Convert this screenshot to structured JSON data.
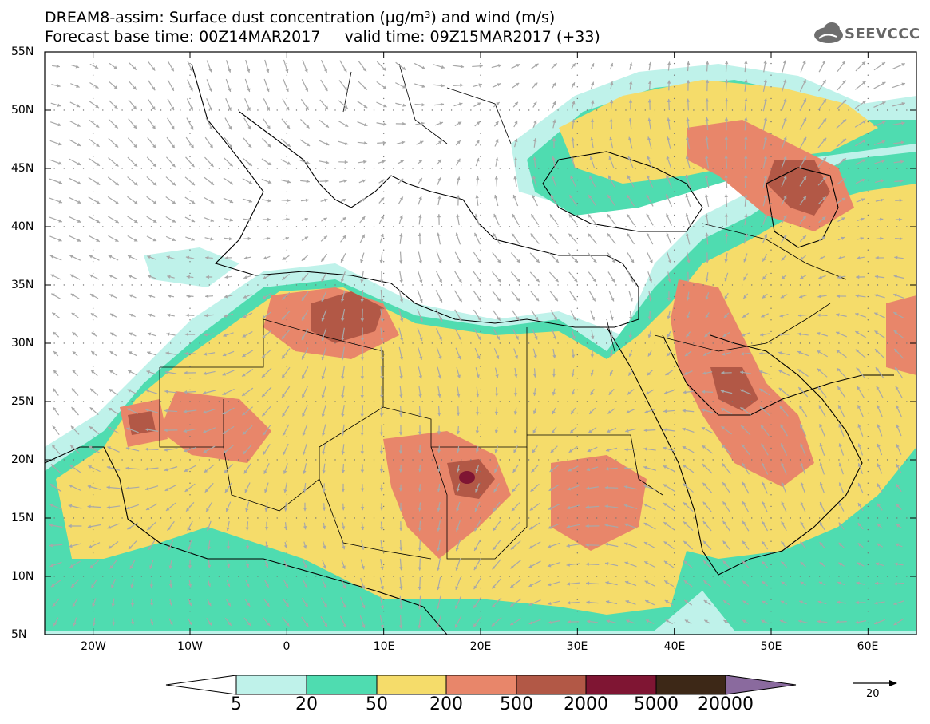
{
  "header": {
    "title_line1": "DREAM8-assim: Surface dust concentration (µg/m³) and wind (m/s)",
    "title_line2": "Forecast base time: 00Z14MAR2017     valid time: 09Z15MAR2017 (+33)"
  },
  "logo": {
    "text": "SEEVCCC",
    "icon": "cloud-icon"
  },
  "map": {
    "lat_labels": [
      "55N",
      "50N",
      "45N",
      "40N",
      "35N",
      "30N",
      "25N",
      "20N",
      "15N",
      "10N",
      "5N"
    ],
    "lon_labels": [
      "20W",
      "10W",
      "0",
      "10E",
      "20E",
      "30E",
      "40E",
      "50E",
      "60E"
    ],
    "lat_range": [
      5,
      55
    ],
    "lon_range": [
      -25,
      65
    ],
    "background": "#ffffff",
    "wind_vector_color": "#a8a8a8",
    "coastline_color": "#000000"
  },
  "colorbar": {
    "labels": [
      "5",
      "20",
      "50",
      "200",
      "500",
      "2000",
      "5000",
      "20000"
    ],
    "colors": [
      "#ffffff",
      "#bff2ea",
      "#4fdcb0",
      "#f5dc6a",
      "#e8866a",
      "#b25846",
      "#7f1533",
      "#3d2817",
      "#8a6a9e"
    ]
  },
  "reference_vector": {
    "label": "20",
    "icon": "arrow-right-icon"
  }
}
